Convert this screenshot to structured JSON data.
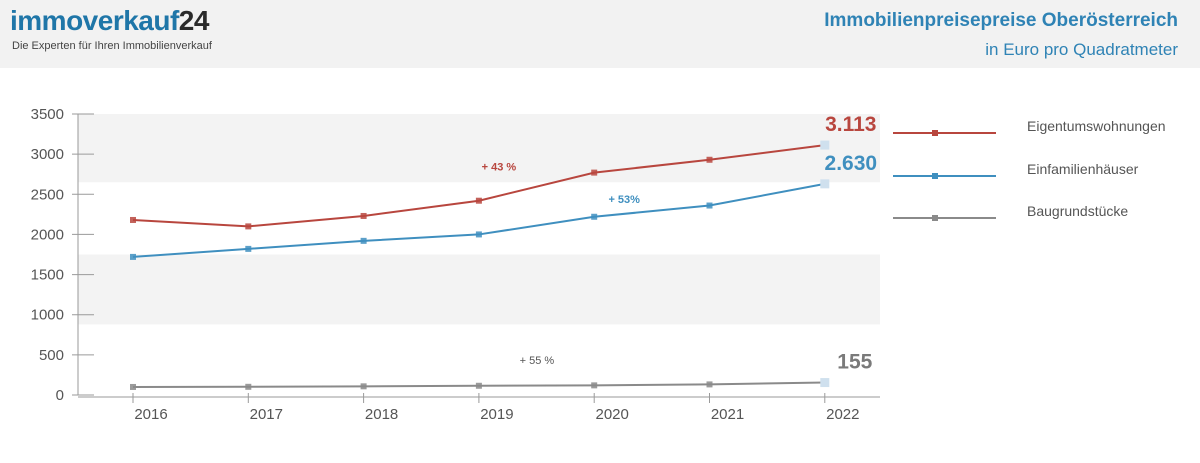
{
  "header": {
    "logo_text": "immoverkauf",
    "logo_number": "24",
    "tagline": "Die Experten für Ihren Immobilienverkauf",
    "title_line1": "Immobilienpreisepreise Oberösterreich",
    "title_line2": "in Euro pro Quadratmeter"
  },
  "chart_data": {
    "type": "line",
    "title": "Immobilienpreisepreise Oberösterreich",
    "subtitle": "in Euro pro Quadratmeter",
    "categories": [
      "2016",
      "2017",
      "2018",
      "2019",
      "2020",
      "2021",
      "2022"
    ],
    "ylim": [
      0,
      3500
    ],
    "yticks": [
      "0",
      "500",
      "1000",
      "1500",
      "2000",
      "2500",
      "3000",
      "3500"
    ],
    "legend_position": "right",
    "series": [
      {
        "name": "Eigentumswohnungen",
        "color": "#b8463e",
        "values": [
          2180,
          2100,
          2230,
          2420,
          2770,
          2930,
          3113
        ],
        "end_label": "3.113",
        "change_label": "+ 43 %"
      },
      {
        "name": "Einfamilienhäuser",
        "color": "#3f8fbf",
        "values": [
          1720,
          1820,
          1920,
          2000,
          2220,
          2360,
          2630
        ],
        "end_label": "2.630",
        "change_label": "+ 53%"
      },
      {
        "name": "Baugrundstücke",
        "color": "#8a8a8a",
        "values": [
          100,
          102,
          108,
          115,
          120,
          132,
          155
        ],
        "end_label": "155",
        "change_label": "+ 55 %"
      }
    ]
  }
}
